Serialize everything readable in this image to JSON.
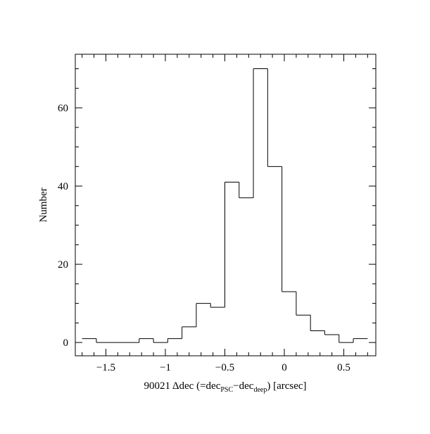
{
  "chart_data": {
    "type": "histogram",
    "bins": [
      -1.7,
      -1.58,
      -1.46,
      -1.34,
      -1.22,
      -1.1,
      -0.98,
      -0.86,
      -0.74,
      -0.62,
      -0.5,
      -0.38,
      -0.26,
      -0.14,
      -0.02,
      0.1,
      0.22,
      0.34,
      0.46,
      0.58,
      0.7
    ],
    "values": [
      1,
      0,
      0,
      0,
      1,
      0,
      1,
      4,
      10,
      9,
      41,
      37,
      70,
      45,
      13,
      7,
      3,
      2,
      0,
      1
    ],
    "color": "#000000",
    "xlim": [
      -1.757,
      0.769
    ],
    "ylim": [
      -3.4,
      73.7
    ],
    "xticks": [
      {
        "value": -1.5,
        "label": "−1.5"
      },
      {
        "value": -1,
        "label": "−1"
      },
      {
        "value": -0.5,
        "label": "−0.5"
      },
      0,
      0.5
    ],
    "xminorticks": [
      -1.7,
      -1.6,
      -1.4,
      -1.3,
      -1.2,
      -1.1,
      -0.9,
      -0.8,
      -0.7,
      -0.6,
      -0.4,
      -0.3,
      -0.2,
      -0.1,
      0.1,
      0.2,
      0.3,
      0.4,
      0.6,
      0.7
    ],
    "yticks": [
      0,
      20,
      40,
      60
    ],
    "yminorticks": [
      5,
      10,
      15,
      25,
      30,
      35,
      45,
      50,
      55,
      65,
      70
    ],
    "xlabel_parts": [
      "90021 Δdec (=dec",
      "PSC",
      "−dec",
      "deep",
      ") [arcsec]"
    ],
    "ylabel": "Number"
  }
}
